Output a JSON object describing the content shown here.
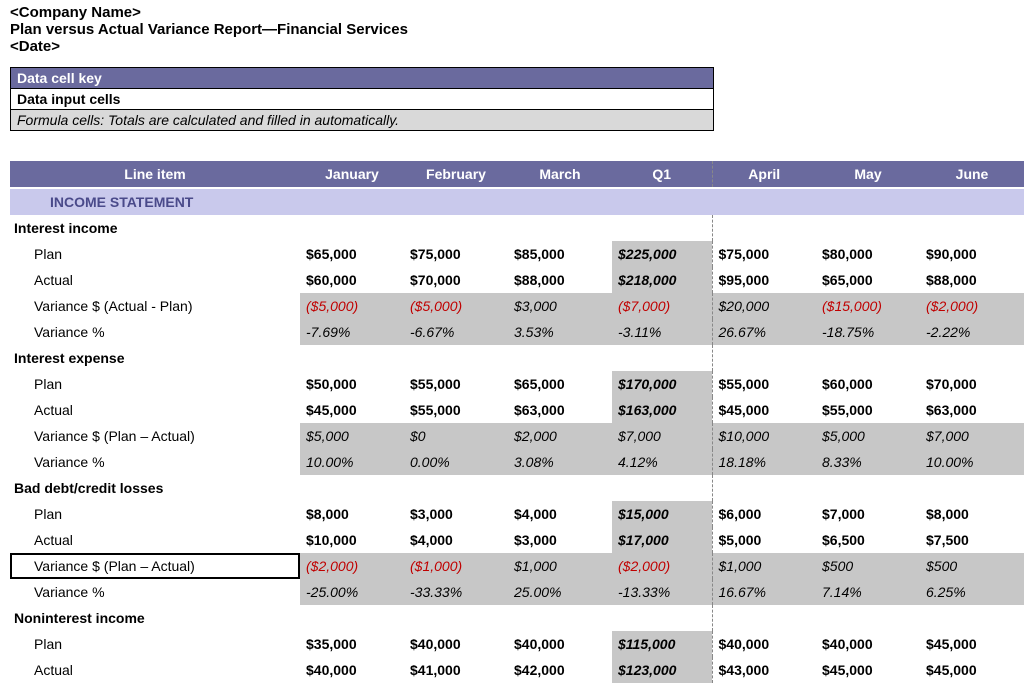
{
  "header": {
    "company": "<Company Name>",
    "title": "Plan versus Actual Variance Report—Financial Services",
    "date": "<Date>"
  },
  "key": {
    "header": "Data cell key",
    "input": "Data input cells",
    "formula": "Formula cells: Totals are calculated and filled in automatically."
  },
  "colors": {
    "band": "#6a6a9e",
    "band_text": "#ffffff",
    "section": "#c9c9ec",
    "section_text": "#4a4a8a",
    "gray": "#c7c7c7",
    "neg": "#c00000",
    "dash": "#888888"
  },
  "columns": [
    "Line item",
    "January",
    "February",
    "March",
    "Q1",
    "April",
    "May",
    "June"
  ],
  "section_title": "INCOME STATEMENT",
  "groups": [
    {
      "title": "Interest income",
      "rows": [
        {
          "label": "Plan",
          "style": "bold",
          "cells": [
            "$65,000",
            "$75,000",
            "$85,000",
            "$225,000",
            "$75,000",
            "$80,000",
            "$90,000"
          ]
        },
        {
          "label": "Actual",
          "style": "bold",
          "cells": [
            "$60,000",
            "$70,000",
            "$88,000",
            "$218,000",
            "$95,000",
            "$65,000",
            "$88,000"
          ]
        },
        {
          "label": "Variance $ (Actual - Plan)",
          "style": "gray",
          "cells": [
            "($5,000)",
            "($5,000)",
            "$3,000",
            "($7,000)",
            "$20,000",
            "($15,000)",
            "($2,000)"
          ],
          "neg": [
            true,
            true,
            false,
            true,
            false,
            true,
            true
          ]
        },
        {
          "label": "Variance %",
          "style": "gray",
          "cells": [
            "-7.69%",
            "-6.67%",
            "3.53%",
            "-3.11%",
            "26.67%",
            "-18.75%",
            "-2.22%"
          ]
        }
      ]
    },
    {
      "title": "Interest expense",
      "rows": [
        {
          "label": "Plan",
          "style": "bold",
          "cells": [
            "$50,000",
            "$55,000",
            "$65,000",
            "$170,000",
            "$55,000",
            "$60,000",
            "$70,000"
          ]
        },
        {
          "label": "Actual",
          "style": "bold",
          "cells": [
            "$45,000",
            "$55,000",
            "$63,000",
            "$163,000",
            "$45,000",
            "$55,000",
            "$63,000"
          ]
        },
        {
          "label": "Variance $ (Plan – Actual)",
          "style": "gray",
          "cells": [
            "$5,000",
            "$0",
            "$2,000",
            "$7,000",
            "$10,000",
            "$5,000",
            "$7,000"
          ]
        },
        {
          "label": "Variance %",
          "style": "gray",
          "cells": [
            "10.00%",
            "0.00%",
            "3.08%",
            "4.12%",
            "18.18%",
            "8.33%",
            "10.00%"
          ]
        }
      ]
    },
    {
      "title": "Bad debt/credit losses",
      "rows": [
        {
          "label": "Plan",
          "style": "bold",
          "cells": [
            "$8,000",
            "$3,000",
            "$4,000",
            "$15,000",
            "$6,000",
            "$7,000",
            "$8,000"
          ]
        },
        {
          "label": "Actual",
          "style": "bold",
          "cells": [
            "$10,000",
            "$4,000",
            "$3,000",
            "$17,000",
            "$5,000",
            "$6,500",
            "$7,500"
          ]
        },
        {
          "label": "Variance $ (Plan – Actual)",
          "style": "gray",
          "selected": true,
          "cells": [
            "($2,000)",
            "($1,000)",
            "$1,000",
            "($2,000)",
            "$1,000",
            "$500",
            "$500"
          ],
          "neg": [
            true,
            true,
            false,
            true,
            false,
            false,
            false
          ]
        },
        {
          "label": "Variance %",
          "style": "gray",
          "cells": [
            "-25.00%",
            "-33.33%",
            "25.00%",
            "-13.33%",
            "16.67%",
            "7.14%",
            "6.25%"
          ]
        }
      ]
    },
    {
      "title": "Noninterest income",
      "rows": [
        {
          "label": "Plan",
          "style": "bold",
          "cells": [
            "$35,000",
            "$40,000",
            "$40,000",
            "$115,000",
            "$40,000",
            "$40,000",
            "$45,000"
          ]
        },
        {
          "label": "Actual",
          "style": "bold",
          "cells": [
            "$40,000",
            "$41,000",
            "$42,000",
            "$123,000",
            "$43,000",
            "$45,000",
            "$45,000"
          ]
        }
      ]
    }
  ]
}
